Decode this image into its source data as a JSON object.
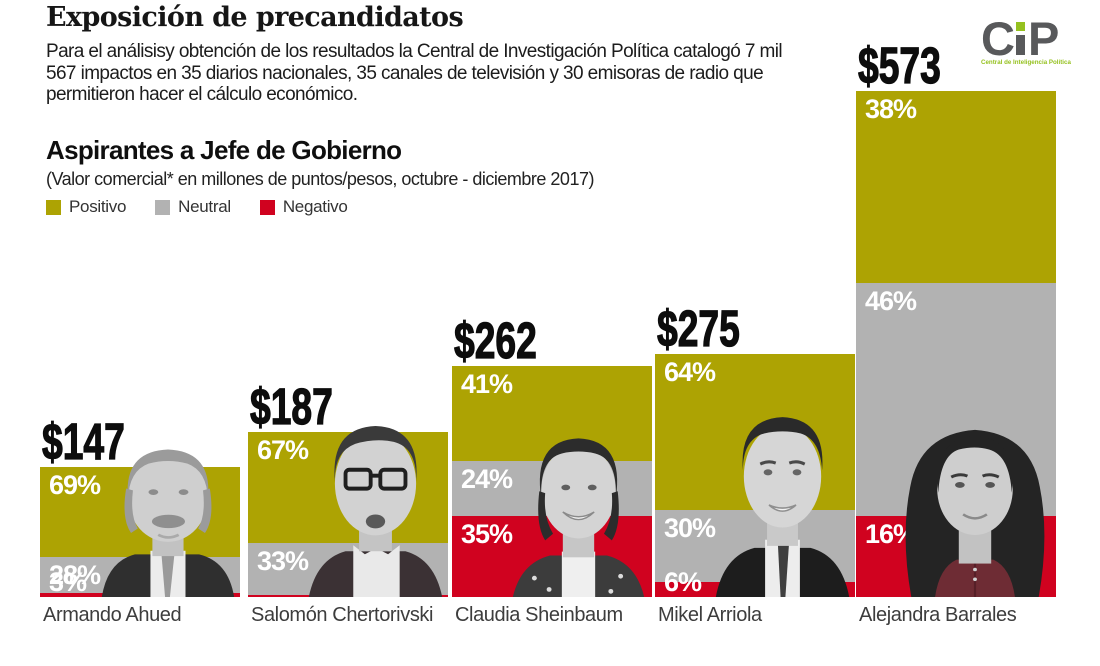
{
  "header": {
    "title": "Exposición de precandidatos",
    "description": "Para el análisisy obtención de los resultados la Central de Investigación Política catalogó 7 mil 567 impactos en 35 diarios nacionales, 35 canales de televisión y 30 emisoras de radio que permitieron hacer el cálculo económico."
  },
  "logo": {
    "letter_c": "C",
    "letter_p": "P",
    "tagline": "Central de Inteligencia Política",
    "letter_color": "#58595b",
    "accent_color": "#95c11f"
  },
  "chart_data": {
    "type": "bar",
    "stacked": true,
    "title": "Aspirantes a Jefe de Gobierno",
    "subtitle": "(Valor comercial* en millones de puntos/pesos, octubre - diciembre 2017)",
    "unit": "millones de puntos/pesos",
    "period": "octubre - diciembre 2017",
    "categories": [
      "Armando Ahued",
      "Salomón Chertorivski",
      "Claudia Sheinbaum",
      "Mikel Arriola",
      "Alejandra Barrales"
    ],
    "totals": [
      147,
      187,
      262,
      275,
      573
    ],
    "total_labels": [
      "$147",
      "$187",
      "$262",
      "$275",
      "$573"
    ],
    "series": [
      {
        "name": "Positivo",
        "color": "#ada303",
        "values": [
          69,
          67,
          41,
          64,
          38
        ]
      },
      {
        "name": "Neutral",
        "color": "#b2b2b2",
        "values": [
          28,
          33,
          24,
          30,
          46
        ]
      },
      {
        "name": "Negativo",
        "color": "#d0021f",
        "values": [
          3,
          0,
          35,
          6,
          16
        ]
      }
    ],
    "value_suffix": "%",
    "ylim": [
      0,
      573
    ],
    "legend_position": "top-left",
    "grid": false
  }
}
